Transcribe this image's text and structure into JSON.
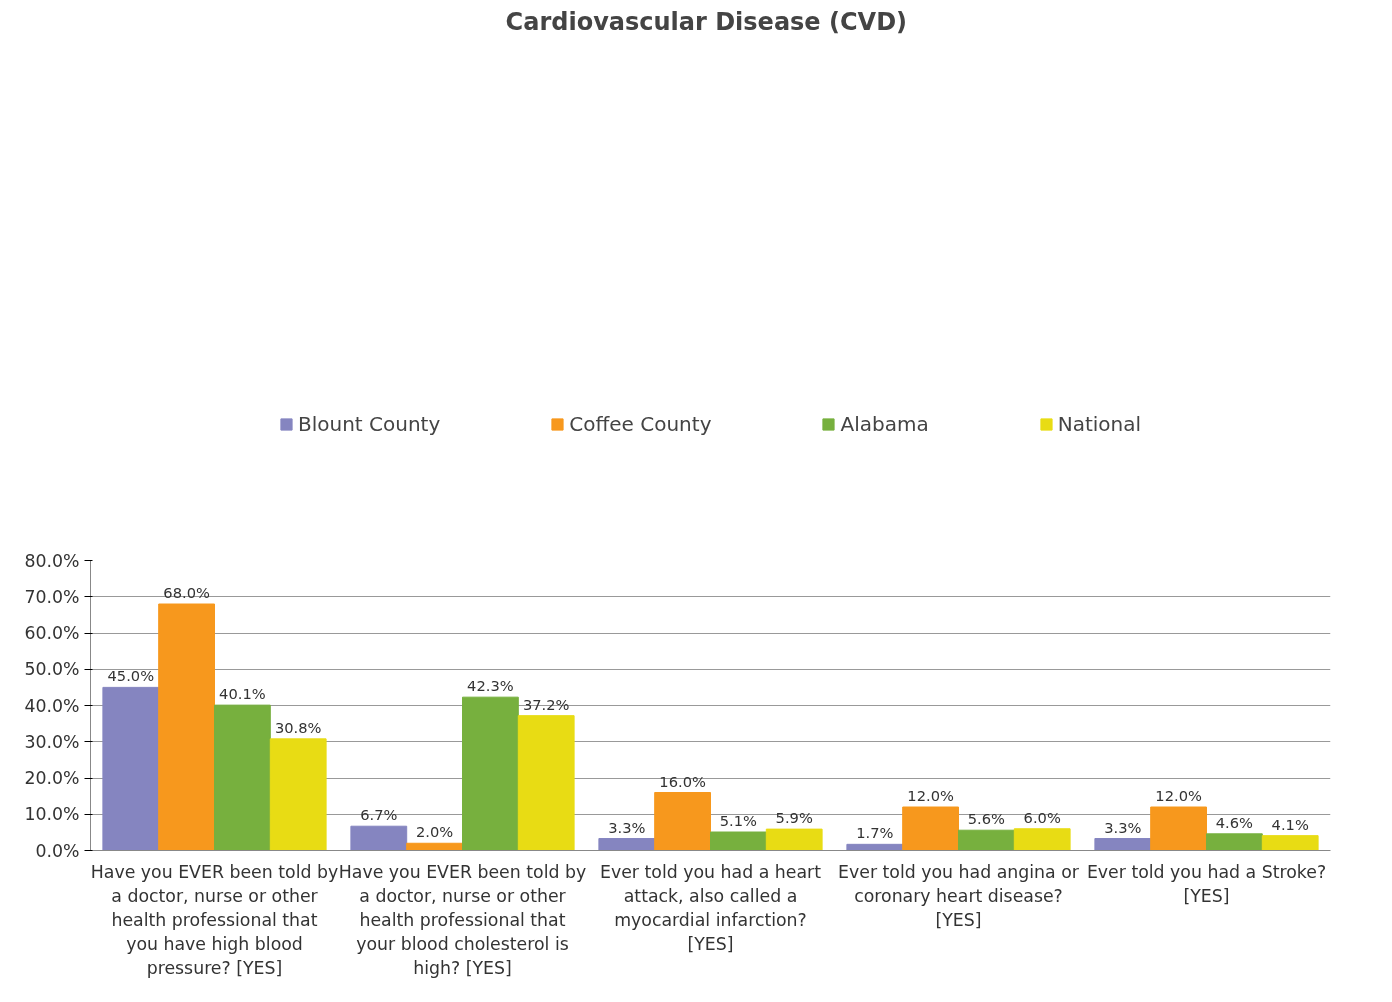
{
  "chart_data": {
    "type": "bar",
    "title": "Cardiovascular  Disease (CVD)",
    "categories": [
      "Have you EVER been told by a doctor, nurse or other health professional that you have high blood pressure? [YES]",
      "Have you EVER been told by a doctor, nurse or other health professional that your blood cholesterol is high? [YES]",
      "Ever told you had a heart attack, also called a myocardial infarction? [YES]",
      "Ever told you had angina or coronary heart disease? [YES]",
      "Ever told you had a Stroke? [YES]"
    ],
    "series": [
      {
        "name": "Blount County",
        "color": "#8585c0",
        "values": [
          45.0,
          6.7,
          3.3,
          1.7,
          3.3
        ],
        "value_labels": [
          "45.0%",
          "6.7%",
          "3.3%",
          "1.7%",
          "3.3%"
        ]
      },
      {
        "name": "Coffee County",
        "color": "#f7981d",
        "values": [
          68.0,
          2.0,
          16.0,
          12.0,
          12.0
        ],
        "value_labels": [
          "68.0%",
          "2.0%",
          "16.0%",
          "12.0%",
          "12.0%"
        ]
      },
      {
        "name": "Alabama",
        "color": "#77b03e",
        "values": [
          40.1,
          42.3,
          5.1,
          5.6,
          4.6
        ],
        "value_labels": [
          "40.1%",
          "42.3%",
          "5.1%",
          "5.6%",
          "4.6%"
        ]
      },
      {
        "name": "National",
        "color": "#e8dc14",
        "values": [
          30.8,
          37.2,
          5.9,
          6.0,
          4.1
        ],
        "value_labels": [
          "30.8%",
          "37.2%",
          "5.9%",
          "6.0%",
          "4.1%"
        ]
      }
    ],
    "ylim": [
      0,
      80
    ],
    "yticks": [
      {
        "value": 0,
        "label": "0.0%"
      },
      {
        "value": 10,
        "label": "10.0%"
      },
      {
        "value": 20,
        "label": "20.0%"
      },
      {
        "value": 30,
        "label": "30.0%"
      },
      {
        "value": 40,
        "label": "40.0%"
      },
      {
        "value": 50,
        "label": "50.0%"
      },
      {
        "value": 60,
        "label": "60.0%"
      },
      {
        "value": 70,
        "label": "70.0%"
      },
      {
        "value": 80,
        "label": "80.0%"
      }
    ],
    "grid": "y",
    "legend": "top"
  }
}
